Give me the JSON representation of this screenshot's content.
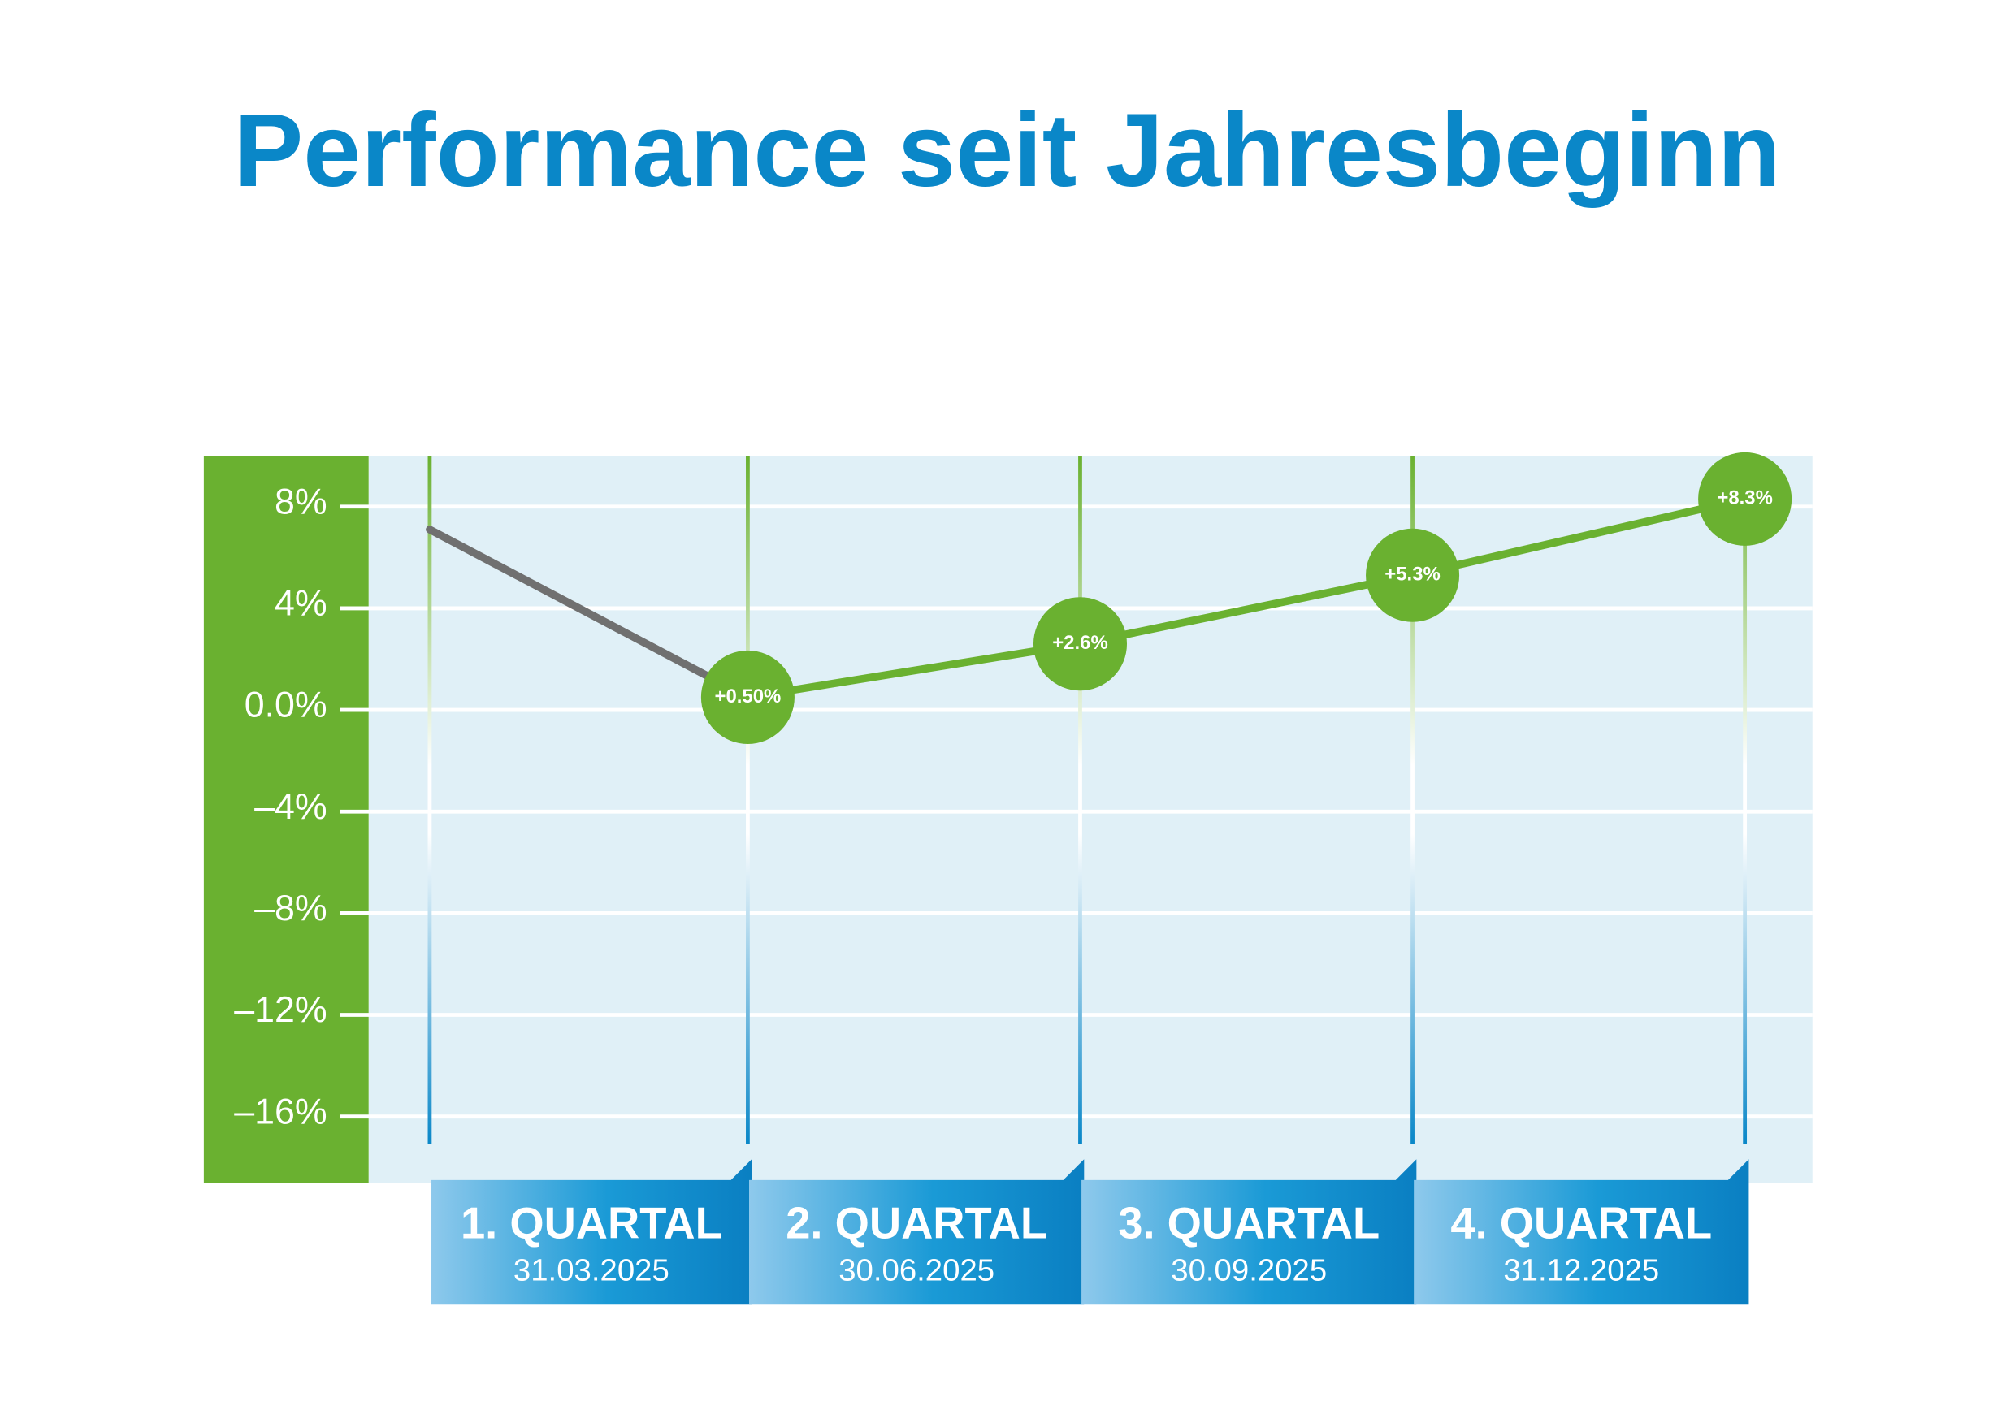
{
  "chart_data": {
    "type": "line",
    "title": "Performance seit Jahresbeginn",
    "categories": [
      null,
      "31.03.2025",
      "30.06.2025",
      "30.09.2025",
      "31.12.2025"
    ],
    "quarter_labels": [
      "1. QUARTAL",
      "2. QUARTAL",
      "3. QUARTAL",
      "4. QUARTAL"
    ],
    "series": [
      {
        "color": "#6ab130",
        "first_segment_color": "#707070",
        "values": [
          7.1,
          0.5,
          2.6,
          5.3,
          8.3
        ],
        "value_labels": [
          null,
          "+0.50%",
          "+2.6%",
          "+5.3%",
          "+8.3%"
        ]
      }
    ],
    "ylim": [
      -18.6,
      10
    ],
    "yticks": [
      {
        "value": 8,
        "label": "8%"
      },
      {
        "value": 4,
        "label": "4%"
      },
      {
        "value": 0,
        "label": "0.0%"
      },
      {
        "value": -4,
        "label": "–4%"
      },
      {
        "value": -8,
        "label": "–8%"
      },
      {
        "value": -12,
        "label": "–12%"
      },
      {
        "value": -16,
        "label": "–16%"
      }
    ],
    "grid": true
  }
}
